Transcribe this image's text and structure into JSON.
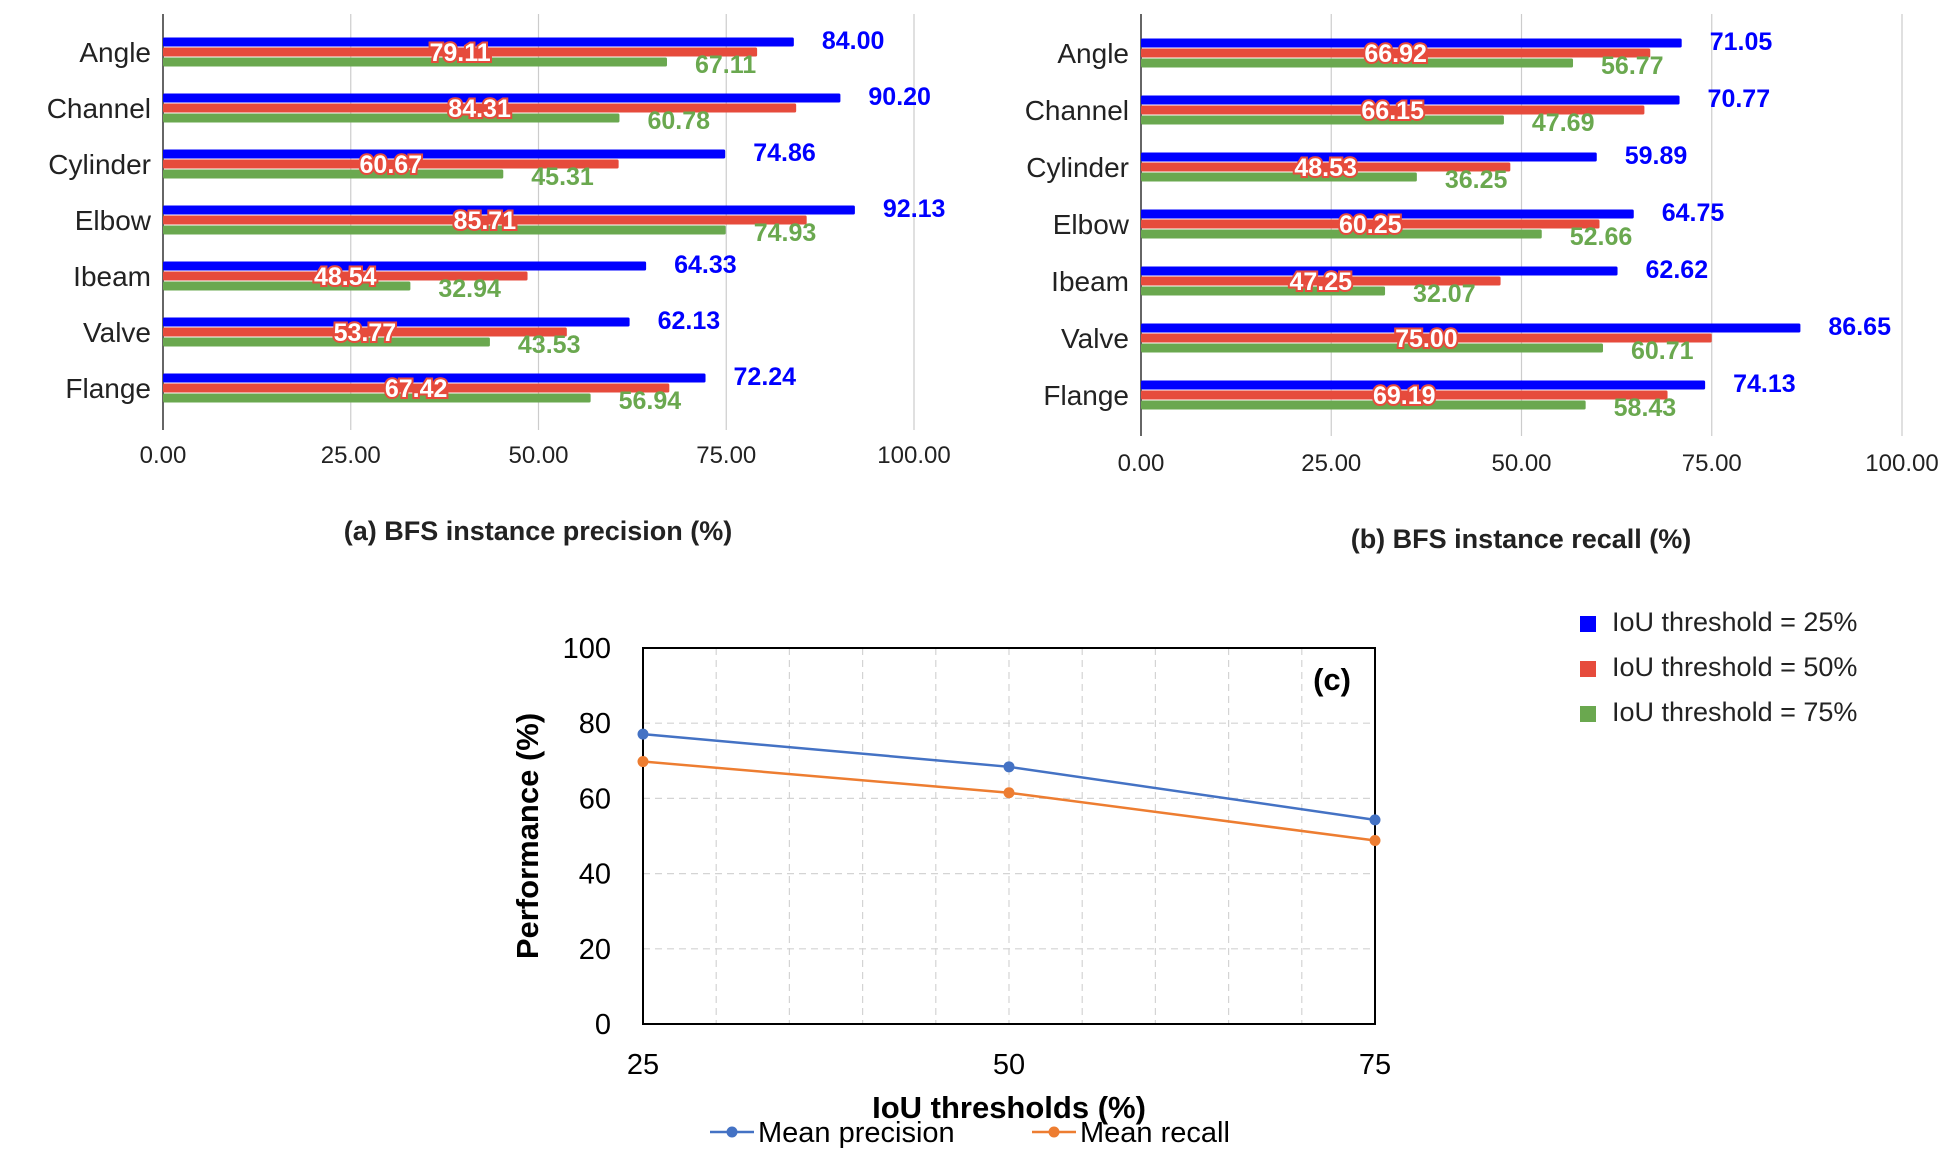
{
  "chart_data": [
    {
      "type": "bar",
      "orientation": "horizontal",
      "title": "(a) BFS instance precision (%)",
      "categories": [
        "Angle",
        "Channel",
        "Cylinder",
        "Elbow",
        "Ibeam",
        "Valve",
        "Flange"
      ],
      "series": [
        {
          "name": "IoU threshold = 25%",
          "color": "#0000ff",
          "values": [
            84.0,
            90.2,
            74.86,
            92.13,
            64.33,
            62.13,
            72.24
          ]
        },
        {
          "name": "IoU threshold = 50%",
          "color": "#e64b3c",
          "values": [
            79.11,
            84.31,
            60.67,
            85.71,
            48.54,
            53.77,
            67.42
          ]
        },
        {
          "name": "IoU threshold = 75%",
          "color": "#6aa84f",
          "values": [
            67.11,
            60.78,
            45.31,
            74.93,
            32.94,
            43.53,
            56.94
          ]
        }
      ],
      "xlim": [
        0,
        100
      ],
      "xticks": [
        "0.00",
        "25.00",
        "50.00",
        "75.00",
        "100.00"
      ],
      "grid": true
    },
    {
      "type": "bar",
      "orientation": "horizontal",
      "title": "(b) BFS instance recall (%)",
      "categories": [
        "Angle",
        "Channel",
        "Cylinder",
        "Elbow",
        "Ibeam",
        "Valve",
        "Flange"
      ],
      "series": [
        {
          "name": "IoU threshold = 25%",
          "color": "#0000ff",
          "values": [
            71.05,
            70.77,
            59.89,
            64.75,
            62.62,
            86.65,
            74.13
          ]
        },
        {
          "name": "IoU threshold = 50%",
          "color": "#e64b3c",
          "values": [
            66.92,
            66.15,
            48.53,
            60.25,
            47.25,
            75.0,
            69.19
          ]
        },
        {
          "name": "IoU threshold = 75%",
          "color": "#6aa84f",
          "values": [
            56.77,
            47.69,
            36.25,
            52.66,
            32.07,
            60.71,
            58.43
          ]
        }
      ],
      "xlim": [
        0,
        100
      ],
      "xticks": [
        "0.00",
        "25.00",
        "50.00",
        "75.00",
        "100.00"
      ],
      "grid": true
    },
    {
      "type": "line",
      "annotation": "(c)",
      "x": [
        25,
        50,
        75
      ],
      "xticks": [
        "25",
        "50",
        "75"
      ],
      "xlabel": "IoU thresholds (%)",
      "ylabel": "Performance (%)",
      "ylim": [
        0,
        100
      ],
      "yticks": [
        "0",
        "20",
        "40",
        "60",
        "80",
        "100"
      ],
      "grid": true,
      "series": [
        {
          "name": "Mean precision",
          "color": "#4472c4",
          "values": [
            77.1,
            68.4,
            54.3
          ]
        },
        {
          "name": "Mean recall",
          "color": "#ed7d31",
          "values": [
            69.8,
            61.5,
            48.8
          ]
        }
      ]
    }
  ],
  "legend": {
    "items": [
      {
        "label": "IoU threshold = 25%",
        "color": "#0000ff"
      },
      {
        "label": "IoU threshold = 50%",
        "color": "#e64b3c"
      },
      {
        "label": "IoU threshold = 75%",
        "color": "#6aa84f"
      }
    ]
  }
}
